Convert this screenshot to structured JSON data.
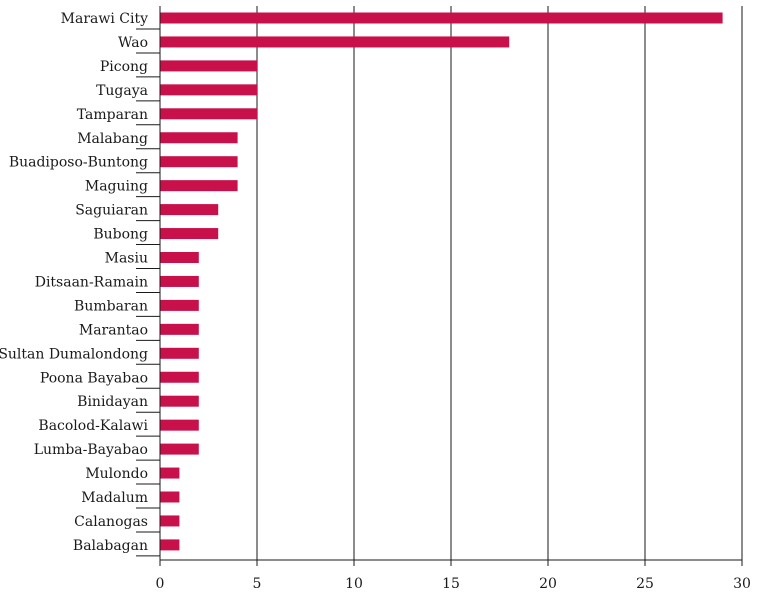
{
  "chart_data": {
    "type": "bar",
    "orientation": "horizontal",
    "categories": [
      "Marawi City",
      "Wao",
      "Picong",
      "Tugaya",
      "Tamparan",
      "Malabang",
      "Buadiposo-Buntong",
      "Maguing",
      "Saguiaran",
      "Bubong",
      "Masiu",
      "Ditsaan-Ramain",
      "Bumbaran",
      "Marantao",
      "Sultan Dumalondong",
      "Poona Bayabao",
      "Binidayan",
      "Bacolod-Kalawi",
      "Lumba-Bayabao",
      "Mulondo",
      "Madalum",
      "Calanogas",
      "Balabagan"
    ],
    "values": [
      29,
      18,
      5,
      5,
      5,
      4,
      4,
      4,
      3,
      3,
      2,
      2,
      2,
      2,
      2,
      2,
      2,
      2,
      2,
      1,
      1,
      1,
      1
    ],
    "xlim": [
      0,
      30
    ],
    "xticks": [
      0,
      5,
      10,
      15,
      20,
      25,
      30
    ],
    "xtick_labels": [
      "0",
      "5",
      "10",
      "15",
      "20",
      "25",
      "30"
    ],
    "grid": "vertical",
    "title": "",
    "xlabel": "",
    "ylabel": "",
    "bar_color": "#c8104b",
    "grid_color": "#1a1a1a"
  }
}
